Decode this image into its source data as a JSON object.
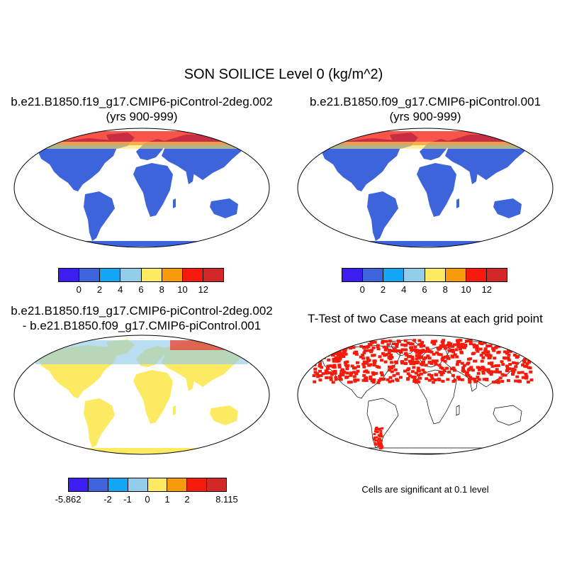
{
  "title": "SON SOILICE Level 0 (kg/m^2)",
  "panels": {
    "case1": {
      "line1": "b.e21.B1850.f19_g17.CMIP6-piControl-2deg.002",
      "line2": "(yrs 900-999)"
    },
    "case2": {
      "line1": "b.e21.B1850.f09_g17.CMIP6-piControl.001",
      "line2": "(yrs 900-999)"
    },
    "diff": {
      "line1": "b.e21.B1850.f19_g17.CMIP6-piControl-2deg.002",
      "line2": "- b.e21.B1850.f09_g17.CMIP6-piControl.001"
    },
    "ttest": {
      "line1": "T-Test of two Case means at each grid point",
      "note": "Cells are significant at 0.1 level"
    }
  },
  "colorbar_main": {
    "colors": [
      "#3d1ef0",
      "#3d64db",
      "#13a6f4",
      "#94cdea",
      "#fdea63",
      "#f79a0c",
      "#f51b0c",
      "#d32828"
    ],
    "labels": [
      "0",
      "2",
      "4",
      "6",
      "8",
      "10",
      "12"
    ]
  },
  "colorbar_diff": {
    "colors": [
      "#3d1ef0",
      "#3d64db",
      "#13a6f4",
      "#94cdea",
      "#fdea63",
      "#f79a0c",
      "#f51b0c",
      "#d32828"
    ],
    "labels": [
      "-5.862",
      "-2",
      "-1",
      "0",
      "1",
      "2",
      "8.115"
    ]
  },
  "colors": {
    "land_main": "#3d64db",
    "land_diff": "#fdea63",
    "significant": "#f51b0c"
  }
}
